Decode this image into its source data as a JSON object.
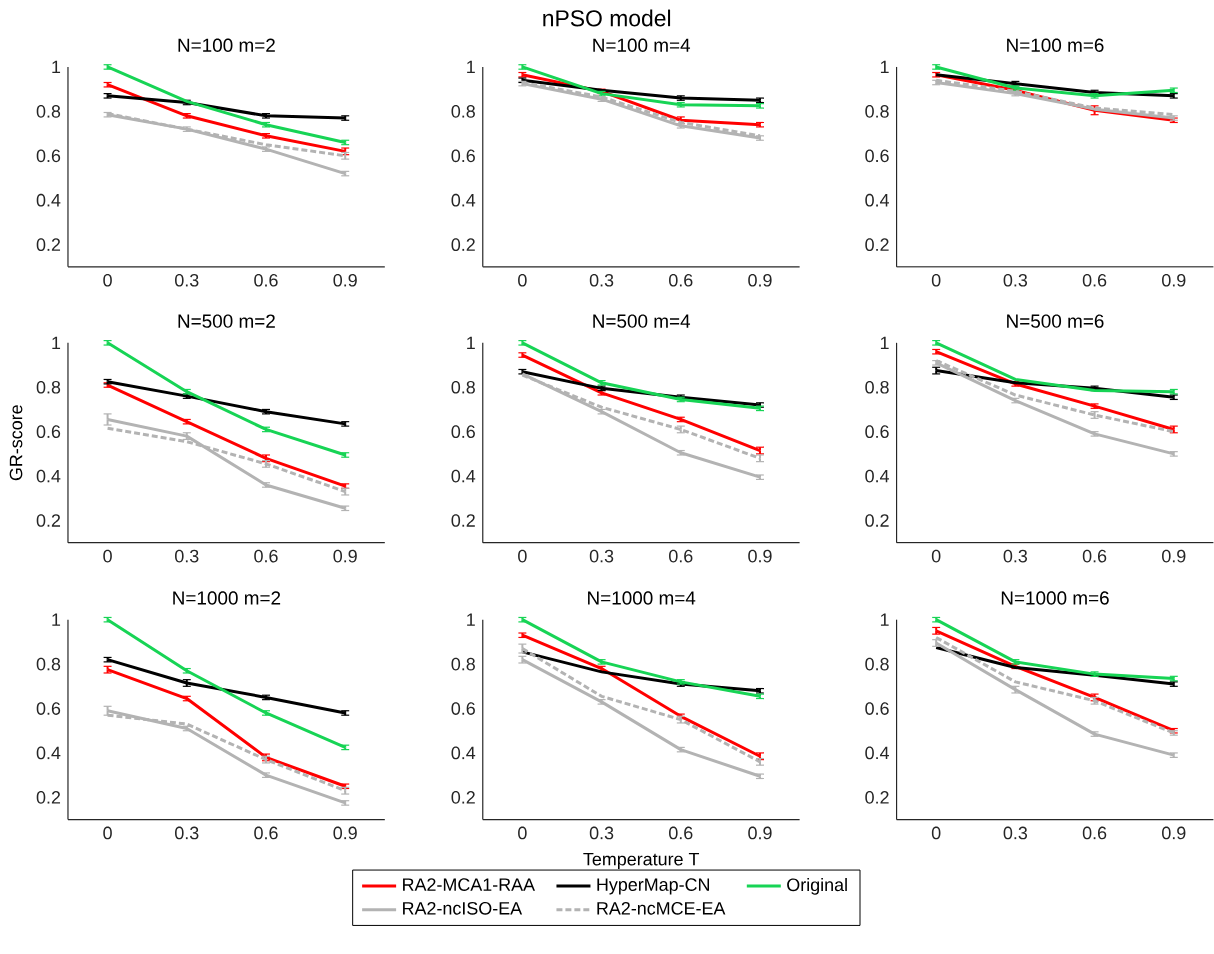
{
  "chart_data": [
    {
      "type": "line",
      "title": "N=100 m=2",
      "annotations": [
        "nPSO model"
      ],
      "x": [
        0,
        0.3,
        0.6,
        0.9
      ],
      "xlim": [
        -0.15,
        1.05
      ],
      "ylim": [
        0.1,
        1.0
      ],
      "xticks": [
        0,
        0.3,
        0.6,
        0.9
      ],
      "yticks": [
        0.2,
        0.4,
        0.6,
        0.8,
        1
      ],
      "series": [
        {
          "color": "#ff0000",
          "values": [
            0.92,
            0.78,
            0.69,
            0.62
          ],
          "errors": [
            0.01,
            0.01,
            0.01,
            0.015
          ]
        },
        {
          "color": "#000000",
          "values": [
            0.87,
            0.84,
            0.78,
            0.77
          ],
          "errors": [
            0.01,
            0.01,
            0.01,
            0.01
          ]
        },
        {
          "color": "#17d455",
          "values": [
            1.0,
            0.845,
            0.74,
            0.66
          ],
          "errors": [
            0.01,
            null,
            0.01,
            0.01
          ]
        },
        {
          "color": "#b3b3b3",
          "values": [
            0.785,
            0.72,
            0.63,
            0.52
          ],
          "errors": [
            0.01,
            0.01,
            0.01,
            0.01
          ]
        },
        {
          "color": "#b3b3b3",
          "line_style": "dashed",
          "values": [
            0.79,
            0.72,
            0.65,
            0.6
          ],
          "errors": [
            null,
            null,
            null,
            0.015
          ]
        }
      ]
    },
    {
      "type": "line",
      "title": "N=100 m=4",
      "x": [
        0,
        0.3,
        0.6,
        0.9
      ],
      "xlim": [
        -0.15,
        1.05
      ],
      "ylim": [
        0.1,
        1.0
      ],
      "xticks": [
        0,
        0.3,
        0.6,
        0.9
      ],
      "yticks": [
        0.2,
        0.4,
        0.6,
        0.8,
        1
      ],
      "series": [
        {
          "color": "#ff0000",
          "values": [
            0.965,
            0.89,
            0.76,
            0.74
          ],
          "errors": [
            0.01,
            0.01,
            0.015,
            0.01
          ]
        },
        {
          "color": "#000000",
          "values": [
            0.94,
            0.895,
            0.86,
            0.85
          ],
          "errors": [
            0.01,
            null,
            0.01,
            0.01
          ]
        },
        {
          "color": "#17d455",
          "values": [
            1.0,
            0.88,
            0.83,
            0.825
          ],
          "errors": [
            0.01,
            0.01,
            0.01,
            0.01
          ]
        },
        {
          "color": "#b3b3b3",
          "values": [
            0.925,
            0.855,
            0.735,
            0.68
          ],
          "errors": [
            0.01,
            0.01,
            0.01,
            0.01
          ]
        },
        {
          "color": "#b3b3b3",
          "line_style": "dashed",
          "values": [
            0.93,
            0.865,
            0.75,
            0.69
          ],
          "errors": [
            null,
            null,
            null,
            null
          ]
        }
      ]
    },
    {
      "type": "line",
      "title": "N=100 m=6",
      "x": [
        0,
        0.3,
        0.6,
        0.9
      ],
      "xlim": [
        -0.15,
        1.05
      ],
      "ylim": [
        0.1,
        1.0
      ],
      "xticks": [
        0,
        0.3,
        0.6,
        0.9
      ],
      "yticks": [
        0.2,
        0.4,
        0.6,
        0.8,
        1
      ],
      "series": [
        {
          "color": "#ff0000",
          "values": [
            0.965,
            0.895,
            0.805,
            0.76
          ],
          "errors": [
            0.01,
            null,
            0.02,
            0.01
          ]
        },
        {
          "color": "#000000",
          "values": [
            0.965,
            0.925,
            0.885,
            0.87
          ],
          "errors": [
            null,
            0.01,
            0.01,
            0.01
          ]
        },
        {
          "color": "#17d455",
          "values": [
            1.0,
            0.905,
            0.87,
            0.895
          ],
          "errors": [
            0.01,
            0.01,
            0.01,
            0.01
          ]
        },
        {
          "color": "#b3b3b3",
          "values": [
            0.93,
            0.88,
            0.81,
            0.77
          ],
          "errors": [
            0.01,
            0.01,
            null,
            0.01
          ]
        },
        {
          "color": "#b3b3b3",
          "line_style": "dashed",
          "values": [
            0.94,
            0.89,
            0.815,
            0.785
          ],
          "errors": [
            null,
            null,
            null,
            null
          ]
        }
      ]
    },
    {
      "type": "line",
      "title": "N=500 m=2",
      "ylabel": "GR-score",
      "x": [
        0,
        0.3,
        0.6,
        0.9
      ],
      "xlim": [
        -0.15,
        1.05
      ],
      "ylim": [
        0.1,
        1.0
      ],
      "xticks": [
        0,
        0.3,
        0.6,
        0.9
      ],
      "yticks": [
        0.2,
        0.4,
        0.6,
        0.8,
        1
      ],
      "series": [
        {
          "color": "#ff0000",
          "values": [
            0.81,
            0.645,
            0.48,
            0.355
          ],
          "errors": [
            0.01,
            0.01,
            0.015,
            0.01
          ]
        },
        {
          "color": "#000000",
          "values": [
            0.825,
            0.76,
            0.69,
            0.635
          ],
          "errors": [
            0.01,
            0.01,
            0.01,
            0.01
          ]
        },
        {
          "color": "#17d455",
          "values": [
            1.0,
            0.78,
            0.61,
            0.495
          ],
          "errors": [
            0.01,
            0.01,
            0.01,
            0.01
          ]
        },
        {
          "color": "#b3b3b3",
          "values": [
            0.655,
            0.58,
            0.36,
            0.255
          ],
          "errors": [
            0.025,
            0.015,
            0.01,
            0.01
          ]
        },
        {
          "color": "#b3b3b3",
          "line_style": "dashed",
          "values": [
            0.615,
            0.555,
            0.455,
            0.33
          ],
          "errors": [
            null,
            null,
            0.015,
            0.015
          ]
        }
      ]
    },
    {
      "type": "line",
      "title": "N=500 m=4",
      "x": [
        0,
        0.3,
        0.6,
        0.9
      ],
      "xlim": [
        -0.15,
        1.05
      ],
      "ylim": [
        0.1,
        1.0
      ],
      "xticks": [
        0,
        0.3,
        0.6,
        0.9
      ],
      "yticks": [
        0.2,
        0.4,
        0.6,
        0.8,
        1
      ],
      "series": [
        {
          "color": "#ff0000",
          "values": [
            0.945,
            0.775,
            0.655,
            0.515
          ],
          "errors": [
            0.01,
            0.01,
            0.01,
            0.015
          ]
        },
        {
          "color": "#000000",
          "values": [
            0.87,
            0.795,
            0.755,
            0.72
          ],
          "errors": [
            0.01,
            0.01,
            0.01,
            0.01
          ]
        },
        {
          "color": "#17d455",
          "values": [
            1.0,
            0.82,
            0.745,
            0.705
          ],
          "errors": [
            0.01,
            0.01,
            0.01,
            0.01
          ]
        },
        {
          "color": "#b3b3b3",
          "values": [
            0.86,
            0.69,
            0.505,
            0.395
          ],
          "errors": [
            null,
            0.01,
            0.01,
            0.01
          ]
        },
        {
          "color": "#b3b3b3",
          "line_style": "dashed",
          "values": [
            0.855,
            0.71,
            0.61,
            0.48
          ],
          "errors": [
            null,
            null,
            0.015,
            0.015
          ]
        }
      ]
    },
    {
      "type": "line",
      "title": "N=500 m=6",
      "x": [
        0,
        0.3,
        0.6,
        0.9
      ],
      "xlim": [
        -0.15,
        1.05
      ],
      "ylim": [
        0.1,
        1.0
      ],
      "xticks": [
        0,
        0.3,
        0.6,
        0.9
      ],
      "yticks": [
        0.2,
        0.4,
        0.6,
        0.8,
        1
      ],
      "series": [
        {
          "color": "#ff0000",
          "values": [
            0.96,
            0.815,
            0.715,
            0.61
          ],
          "errors": [
            0.01,
            0.01,
            0.01,
            0.015
          ]
        },
        {
          "color": "#000000",
          "values": [
            0.875,
            0.82,
            0.795,
            0.755
          ],
          "errors": [
            0.015,
            null,
            0.01,
            0.01
          ]
        },
        {
          "color": "#17d455",
          "values": [
            1.0,
            0.835,
            0.785,
            0.78
          ],
          "errors": [
            0.01,
            null,
            null,
            0.01
          ]
        },
        {
          "color": "#b3b3b3",
          "values": [
            0.91,
            0.74,
            0.59,
            0.5
          ],
          "errors": [
            0.01,
            0.01,
            0.01,
            0.01
          ]
        },
        {
          "color": "#b3b3b3",
          "line_style": "dashed",
          "values": [
            0.92,
            0.765,
            0.675,
            0.6
          ],
          "errors": [
            null,
            null,
            0.015,
            null
          ]
        }
      ]
    },
    {
      "type": "line",
      "title": "N=1000 m=2",
      "x": [
        0,
        0.3,
        0.6,
        0.9
      ],
      "xlim": [
        -0.15,
        1.05
      ],
      "ylim": [
        0.1,
        1.0
      ],
      "xticks": [
        0,
        0.3,
        0.6,
        0.9
      ],
      "yticks": [
        0.2,
        0.4,
        0.6,
        0.8,
        1
      ],
      "series": [
        {
          "color": "#ff0000",
          "values": [
            0.775,
            0.645,
            0.38,
            0.25
          ],
          "errors": [
            0.015,
            0.01,
            0.015,
            0.01
          ]
        },
        {
          "color": "#000000",
          "values": [
            0.82,
            0.715,
            0.65,
            0.58
          ],
          "errors": [
            0.01,
            0.015,
            0.01,
            0.01
          ]
        },
        {
          "color": "#17d455",
          "values": [
            1.0,
            0.77,
            0.58,
            0.425
          ],
          "errors": [
            0.01,
            0.01,
            0.01,
            0.01
          ]
        },
        {
          "color": "#b3b3b3",
          "values": [
            0.59,
            0.51,
            0.3,
            0.175
          ],
          "errors": [
            0.02,
            0.01,
            0.01,
            0.01
          ]
        },
        {
          "color": "#b3b3b3",
          "line_style": "dashed",
          "values": [
            0.57,
            0.53,
            0.37,
            0.23
          ],
          "errors": [
            null,
            null,
            0.015,
            0.015
          ]
        }
      ]
    },
    {
      "type": "line",
      "title": "N=1000 m=4",
      "xlabel": "Temperature T",
      "legend": "bottom",
      "x": [
        0,
        0.3,
        0.6,
        0.9
      ],
      "xlim": [
        -0.15,
        1.05
      ],
      "ylim": [
        0.1,
        1.0
      ],
      "xticks": [
        0,
        0.3,
        0.6,
        0.9
      ],
      "yticks": [
        0.2,
        0.4,
        0.6,
        0.8,
        1
      ],
      "series": [
        {
          "name": "RA2-MCA1-RAA",
          "color": "#ff0000",
          "values": [
            0.93,
            0.78,
            0.565,
            0.385
          ],
          "errors": [
            0.01,
            0.01,
            0.01,
            0.015
          ]
        },
        {
          "name": "HyperMap-CN",
          "color": "#000000",
          "values": [
            0.855,
            0.765,
            0.71,
            0.68
          ],
          "errors": [
            null,
            null,
            0.01,
            0.01
          ]
        },
        {
          "name": "Original",
          "color": "#17d455",
          "values": [
            1.0,
            0.81,
            0.72,
            0.655
          ],
          "errors": [
            0.01,
            0.01,
            0.01,
            0.01
          ]
        },
        {
          "name": "RA2-ncISO-EA",
          "color": "#b3b3b3",
          "values": [
            0.82,
            0.63,
            0.415,
            0.295
          ],
          "errors": [
            0.015,
            0.01,
            0.01,
            0.01
          ]
        },
        {
          "name": "RA2-ncMCE-EA",
          "color": "#b3b3b3",
          "line_style": "dashed",
          "values": [
            0.87,
            0.655,
            0.55,
            0.36
          ],
          "errors": [
            0.02,
            null,
            0.015,
            0.015
          ]
        }
      ]
    },
    {
      "type": "line",
      "title": "N=1000 m=6",
      "x": [
        0,
        0.3,
        0.6,
        0.9
      ],
      "xlim": [
        -0.15,
        1.05
      ],
      "ylim": [
        0.1,
        1.0
      ],
      "xticks": [
        0,
        0.3,
        0.6,
        0.9
      ],
      "yticks": [
        0.2,
        0.4,
        0.6,
        0.8,
        1
      ],
      "series": [
        {
          "color": "#ff0000",
          "values": [
            0.95,
            0.79,
            0.65,
            0.5
          ],
          "errors": [
            0.015,
            0.01,
            0.015,
            0.01
          ]
        },
        {
          "color": "#000000",
          "values": [
            0.875,
            0.785,
            0.75,
            0.71
          ],
          "errors": [
            null,
            null,
            null,
            0.01
          ]
        },
        {
          "color": "#17d455",
          "values": [
            1.0,
            0.81,
            0.755,
            0.735
          ],
          "errors": [
            0.01,
            0.01,
            0.01,
            0.01
          ]
        },
        {
          "color": "#b3b3b3",
          "values": [
            0.895,
            0.685,
            0.485,
            0.39
          ],
          "errors": [
            0.015,
            0.015,
            0.01,
            0.01
          ]
        },
        {
          "color": "#b3b3b3",
          "line_style": "dashed",
          "values": [
            0.92,
            0.72,
            0.635,
            0.49
          ],
          "errors": [
            null,
            null,
            0.015,
            0.01
          ]
        }
      ]
    }
  ]
}
